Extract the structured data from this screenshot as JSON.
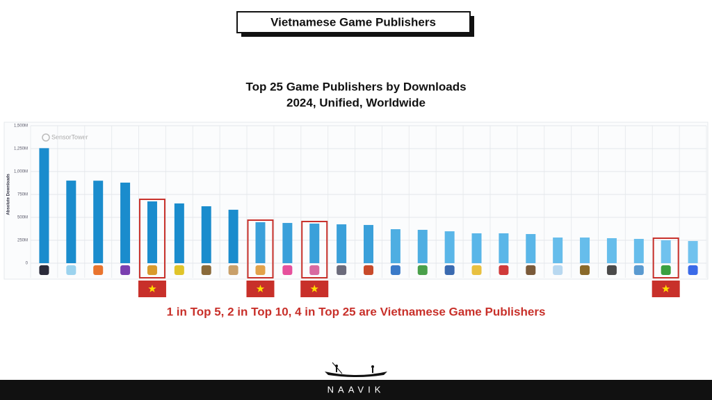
{
  "header": {
    "title": "Vietnamese Game Publishers"
  },
  "chart_data": {
    "type": "bar",
    "title": "Top 25 Game Publishers by Downloads",
    "subtitle": "2024, Unified, Worldwide",
    "y_label": "Absolute Downloads",
    "watermark": "SensorTower",
    "categories": [
      null,
      null,
      null,
      null,
      null,
      null,
      null,
      null,
      null,
      null,
      null,
      null,
      null,
      null,
      null,
      null,
      null,
      null,
      null,
      null,
      null,
      null,
      null,
      null,
      null
    ],
    "values": [
      1255000000,
      901000000,
      900000000,
      879000000,
      674000000,
      652000000,
      621000000,
      583000000,
      447000000,
      439000000,
      432000000,
      424000000,
      417000000,
      371000000,
      364000000,
      348000000,
      326000000,
      326000000,
      318000000,
      280000000,
      280000000,
      273000000,
      265000000,
      250000000,
      242000000
    ],
    "colors": [
      "#1a8ccd",
      "#1a8ccd",
      "#1a8ccd",
      "#1a8ccd",
      "#1a8ccd",
      "#1a8ccd",
      "#1a8ccd",
      "#1a8ccd",
      "#3aa0da",
      "#3aa0da",
      "#3aa0da",
      "#3aa0da",
      "#3aa0da",
      "#4eaee2",
      "#4eaee2",
      "#5ab6e8",
      "#5ab6e8",
      "#5ab6e8",
      "#5ab6e8",
      "#66bdeb",
      "#66bdeb",
      "#66bdeb",
      "#66bdeb",
      "#70c2ee",
      "#70c2ee"
    ],
    "highlight": [
      4,
      8,
      10,
      23
    ],
    "highlight_color": "#c8302a",
    "ylim": [
      0,
      1500000000
    ],
    "yticks": [
      0,
      {
        "value": 250000000,
        "label": "250M"
      },
      {
        "value": 500000000,
        "label": "500M"
      },
      {
        "value": 750000000,
        "label": "750M"
      },
      {
        "value": 1000000000,
        "label": "1,000M"
      },
      {
        "value": 1250000000,
        "label": "1,250M"
      },
      {
        "value": 1500000000,
        "label": "1,500M"
      }
    ],
    "grid": true,
    "annotation": "1 in Top 5, 2 in Top 10, 4 in Top 25 are Vietnamese Game Publishers"
  },
  "footer": {
    "brand": "NAAVIK"
  }
}
